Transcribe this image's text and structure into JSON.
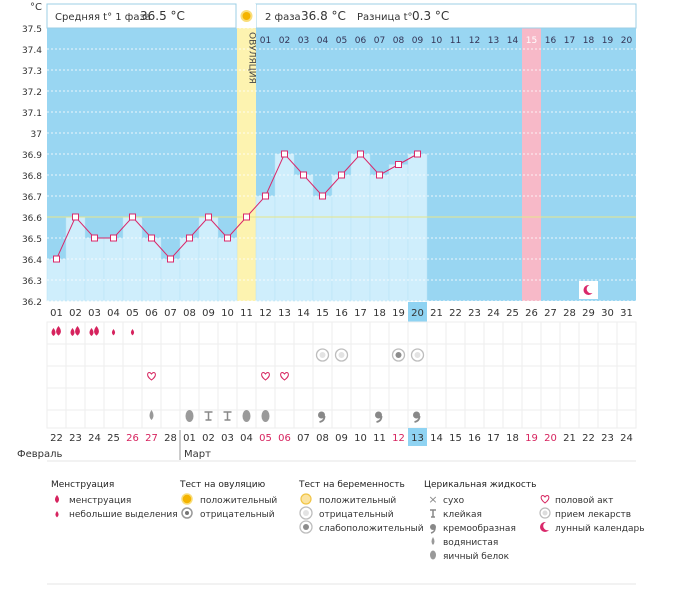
{
  "header": {
    "unit": "°C",
    "phase1_label": "Средняя t° 1 фаза",
    "phase1_value": "36.5 °C",
    "phase2_label": "2 фаза",
    "phase2_value": "36.8 °C",
    "diff_label": "Разница t°",
    "diff_value": "0.3 °C",
    "ovulation_label": "ОВУЛЯЦИЯ"
  },
  "colors": {
    "phase_bg": "#99d6f2",
    "bar_fill": "#cfeefc",
    "ovulation_bg": "#fdf3b0",
    "ovulation_strip": "#fdeeb0",
    "highlight_day": "#f7b9c8",
    "line": "#d9286a",
    "today": "#8fd3f2",
    "accent_red": "#d6235e",
    "coverline": "#e6e68a"
  },
  "chart_data": {
    "type": "line",
    "title": "",
    "ylabel": "°C",
    "ylim": [
      36.2,
      37.5
    ],
    "yticks": [
      "37.5",
      "37.4",
      "37.3",
      "37.2",
      "37.1",
      "37",
      "36.9",
      "36.8",
      "36.7",
      "36.6",
      "36.5",
      "36.4",
      "36.3",
      "36.2"
    ],
    "coverline": 36.6,
    "cycle_days": [
      "01",
      "02",
      "03",
      "04",
      "05",
      "06",
      "07",
      "08",
      "09",
      "10",
      "11",
      "12",
      "13",
      "14",
      "15",
      "16",
      "17",
      "18",
      "19",
      "20",
      "21",
      "22",
      "23",
      "24",
      "25",
      "26",
      "27",
      "28",
      "29",
      "30",
      "31"
    ],
    "top_labels": [
      "",
      "",
      "",
      "",
      "",
      "",
      "",
      "",
      "",
      "",
      "",
      "01",
      "02",
      "03",
      "04",
      "05",
      "06",
      "07",
      "08",
      "09",
      "10",
      "11",
      "12",
      "13",
      "14",
      "15",
      "16",
      "17",
      "18",
      "19",
      "20"
    ],
    "temperatures": [
      36.4,
      36.6,
      36.5,
      36.5,
      36.6,
      36.5,
      36.4,
      36.5,
      36.6,
      36.5,
      36.6,
      36.7,
      36.9,
      36.8,
      36.7,
      36.8,
      36.9,
      36.8,
      36.85,
      36.9
    ],
    "ovulation_day": 11,
    "highlight_day": 26,
    "today_day": 20,
    "moon_day": 29,
    "dates": [
      "22",
      "23",
      "24",
      "25",
      "26",
      "27",
      "28",
      "01",
      "02",
      "03",
      "04",
      "05",
      "06",
      "07",
      "08",
      "09",
      "10",
      "11",
      "12",
      "13",
      "14",
      "15",
      "16",
      "17",
      "18",
      "19",
      "20",
      "21",
      "22",
      "23",
      "24"
    ],
    "red_date_days": [
      5,
      6,
      12,
      13,
      19,
      26,
      27
    ],
    "months": [
      "Февраль",
      "Март"
    ]
  },
  "legend": {
    "menstruation": {
      "title": "Менструация",
      "items": [
        "менструация",
        "небольшие выделения"
      ]
    },
    "ovulation_test": {
      "title": "Тест на овуляцию",
      "items": [
        "положительный",
        "отрицательный"
      ]
    },
    "pregnancy_test": {
      "title": "Тест на беременность",
      "items": [
        "положительный",
        "отрицательный",
        "слабоположительный"
      ]
    },
    "cervical_fluid": {
      "title": "Церикальная жидкость",
      "items": [
        "сухо",
        "клейкая",
        "кремообразная",
        "водянистая",
        "яичный белок"
      ]
    },
    "other": {
      "items": [
        "половой акт",
        "прием лекарств",
        "лунный календарь"
      ]
    }
  }
}
